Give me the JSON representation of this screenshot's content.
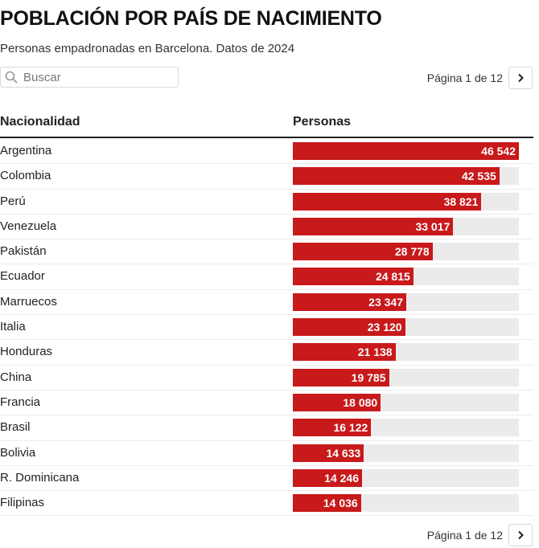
{
  "title": "POBLACIÓN POR PAÍS DE NACIMIENTO",
  "subtitle": "Personas empadronadas en Barcelona. Datos de 2024",
  "search": {
    "placeholder": "Buscar",
    "icon": "search-icon"
  },
  "pagination": {
    "label": "Página 1 de 12",
    "next_icon": "chevron-right-icon"
  },
  "table": {
    "columns": [
      "Nacionalidad",
      "Personas"
    ],
    "bar_color": "#c8191b",
    "track_color": "#ebebeb"
  },
  "chart_data": {
    "type": "bar",
    "orientation": "horizontal",
    "xlim": [
      0,
      46542
    ],
    "categories": [
      "Argentina",
      "Colombia",
      "Perú",
      "Venezuela",
      "Pakistán",
      "Ecuador",
      "Marruecos",
      "Italia",
      "Honduras",
      "China",
      "Francia",
      "Brasil",
      "Bolivia",
      "R. Dominicana",
      "Filipinas"
    ],
    "values": [
      46542,
      42535,
      38821,
      33017,
      28778,
      24815,
      23347,
      23120,
      21138,
      19785,
      18080,
      16122,
      14633,
      14246,
      14036
    ],
    "value_labels": [
      "46 542",
      "42 535",
      "38 821",
      "33 017",
      "28 778",
      "24 815",
      "23 347",
      "23 120",
      "21 138",
      "19 785",
      "18 080",
      "16 122",
      "14 633",
      "14 246",
      "14 036"
    ]
  }
}
